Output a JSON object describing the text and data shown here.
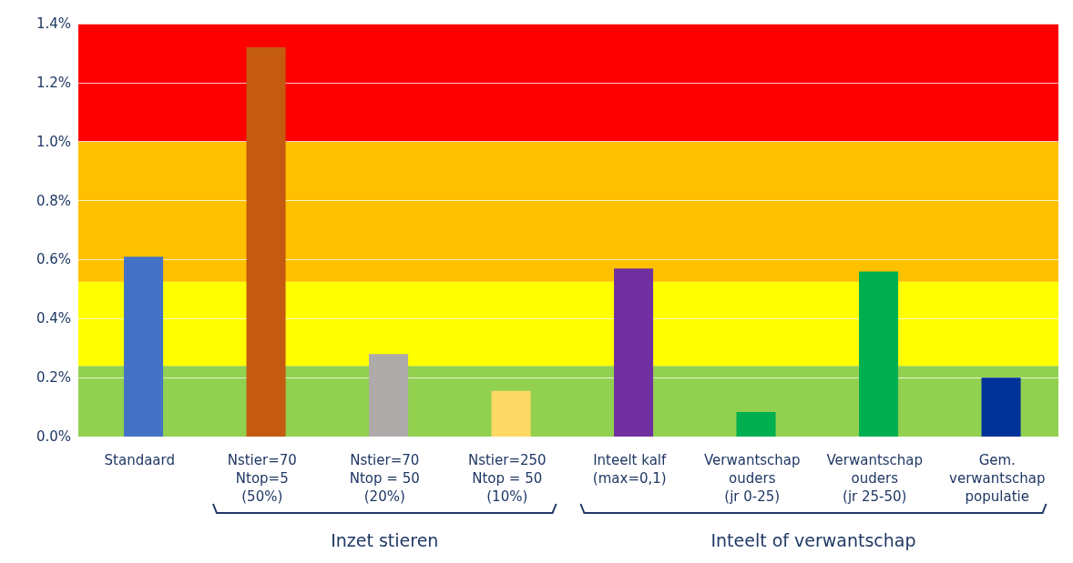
{
  "chart_data": {
    "type": "bar",
    "categories": [
      "Standaard",
      "Nstier=70\nNtop=5\n(50%)",
      "Nstier=70\nNtop = 50\n(20%)",
      "Nstier=250\nNtop = 50\n(10%)",
      "Inteelt kalf\n(max=0,1)",
      "Verwantschap\nouders\n(jr 0-25)",
      "Verwantschap\nouders\n(jr 25-50)",
      "Gem.\nverwantschap\npopulatie"
    ],
    "values": [
      0.61,
      1.32,
      0.28,
      0.155,
      0.57,
      0.083,
      0.56,
      0.2
    ],
    "colors": [
      "#4472c4",
      "#c55a11",
      "#aeaaaa",
      "#ffd966",
      "#7030a0",
      "#00b050",
      "#00b050",
      "#003399"
    ],
    "ylim": [
      0,
      1.4
    ],
    "yticks": [
      {
        "value": 0,
        "label": "0.0%"
      },
      {
        "value": 0.2,
        "label": "0.2%"
      },
      {
        "value": 0.4,
        "label": "0.4%"
      },
      {
        "value": 0.6,
        "label": "0.6%"
      },
      {
        "value": 0.8,
        "label": "0.8%"
      },
      {
        "value": 1.0,
        "label": "1.0%"
      },
      {
        "value": 1.2,
        "label": "1.2%"
      },
      {
        "value": 1.4,
        "label": "1.4%"
      }
    ],
    "grid": "y",
    "bands": [
      {
        "axis": "y",
        "from": 0,
        "to": 0.24,
        "color": "#92d050"
      },
      {
        "axis": "y",
        "from": 0.24,
        "to": 0.525,
        "color": "#ffff00"
      },
      {
        "axis": "y",
        "from": 0.525,
        "to": 1.0,
        "color": "#ffc000"
      },
      {
        "axis": "y",
        "from": 1.0,
        "to": 1.4,
        "color": "#ff0000"
      }
    ],
    "annotations": [
      "Inzet stieren",
      "Inteelt of verwantschap"
    ]
  }
}
